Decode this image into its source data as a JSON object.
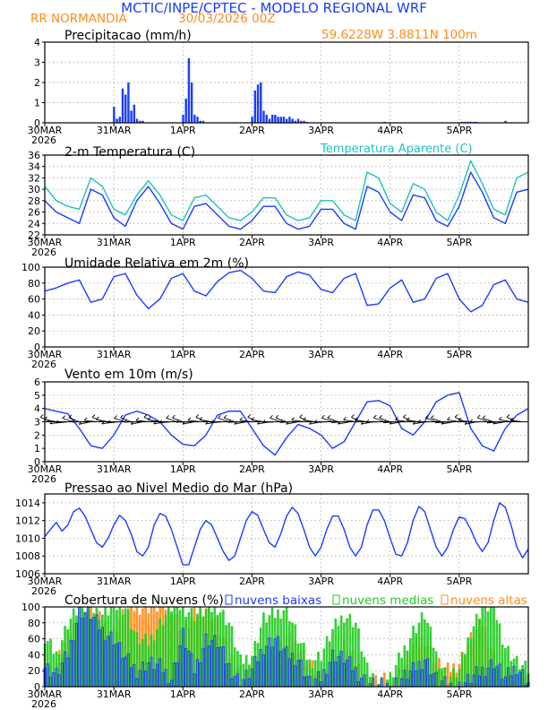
{
  "header": {
    "title": "MCTIC/INPE/CPTEC - MODELO REGIONAL WRF",
    "station": "RR NORMANDIA",
    "run": "30/03/2026 00Z",
    "location": "59.6228W 3.8811N 100m"
  },
  "colors": {
    "blue": "#1a3cff",
    "orange": "#ff8c1a",
    "cyan": "#20c0c0",
    "green": "#22cc22",
    "black": "#000000"
  },
  "chart_data": [
    {
      "type": "bar",
      "title": "Precipitacao (mm/h)",
      "ylim": [
        0,
        4
      ],
      "yticks": [
        "0",
        "1",
        "2",
        "3",
        "4"
      ],
      "xticks": [
        "30MAR",
        "31MAR",
        "1APR",
        "2APR",
        "3APR",
        "4APR",
        "5APR"
      ],
      "xyear": "2026",
      "hours": [
        24,
        25,
        26,
        27,
        28,
        29,
        30,
        31,
        32,
        33,
        34,
        48,
        49,
        50,
        51,
        52,
        53,
        54,
        55,
        72,
        73,
        74,
        75,
        76,
        77,
        78,
        79,
        80,
        81,
        82,
        83,
        84,
        85,
        86,
        87,
        88,
        89,
        90,
        91,
        118,
        145,
        146,
        147,
        148,
        149,
        150,
        160
      ],
      "values": [
        0.8,
        0.2,
        0.3,
        1.7,
        1.4,
        2.0,
        0.6,
        0.9,
        0.2,
        0.1,
        0.1,
        0.4,
        1.2,
        3.2,
        2.0,
        0.4,
        0.3,
        0.1,
        0.1,
        0.3,
        1.6,
        1.9,
        2.0,
        0.6,
        0.4,
        0.2,
        0.4,
        0.4,
        0.3,
        0.3,
        0.3,
        0.2,
        0.3,
        0.2,
        0.1,
        0.2,
        0.1,
        0.1,
        0.05,
        0.05,
        0.05,
        0.05,
        0.05,
        0.05,
        0.05,
        0.05,
        0.1
      ]
    },
    {
      "type": "line",
      "title": "2-m Temperatura (C)",
      "legend": "Temperatura Aparente (C)",
      "ylim": [
        22,
        36
      ],
      "yticks": [
        "22",
        "24",
        "26",
        "28",
        "30",
        "32",
        "34",
        "36"
      ],
      "xticks": [
        "30MAR",
        "31MAR",
        "1APR",
        "2APR",
        "3APR",
        "4APR",
        "5APR"
      ],
      "xyear": "2026",
      "series": [
        {
          "name": "Temperatura Aparente (C)",
          "color": "cyan",
          "x": [
            0,
            4,
            8,
            12,
            16,
            20,
            24,
            28,
            32,
            36,
            40,
            44,
            48,
            52,
            56,
            60,
            64,
            68,
            72,
            76,
            80,
            84,
            88,
            92,
            96,
            100,
            104,
            108,
            112,
            116,
            120,
            124,
            128,
            132,
            136,
            140,
            144,
            148,
            152,
            156,
            160,
            164,
            168
          ],
          "y": [
            30.5,
            28,
            27,
            26.5,
            32,
            30.5,
            26.5,
            25.5,
            29,
            31.5,
            29,
            25.5,
            24.5,
            28.5,
            29,
            27,
            25,
            24.5,
            26,
            28.5,
            28.5,
            25.5,
            24.5,
            25,
            28,
            28,
            25.5,
            24.5,
            33,
            32,
            27.5,
            26,
            31,
            30,
            26,
            24.5,
            29,
            35,
            31,
            26.5,
            25.5,
            32,
            33
          ]
        },
        {
          "name": "2-m Temperatura (C)",
          "color": "blue",
          "x": [
            0,
            4,
            8,
            12,
            16,
            20,
            24,
            28,
            32,
            36,
            40,
            44,
            48,
            52,
            56,
            60,
            64,
            68,
            72,
            76,
            80,
            84,
            88,
            92,
            96,
            100,
            104,
            108,
            112,
            116,
            120,
            124,
            128,
            132,
            136,
            140,
            144,
            148,
            152,
            156,
            160,
            164,
            168
          ],
          "y": [
            28,
            26,
            25,
            24,
            30,
            29,
            25,
            23.5,
            28,
            30.5,
            27.5,
            24,
            23,
            27,
            27.5,
            25.5,
            23.5,
            23,
            24.5,
            27,
            27,
            24,
            23,
            23.5,
            26.5,
            26.5,
            24,
            23,
            30.5,
            29.5,
            26,
            24.5,
            29,
            28.5,
            24.5,
            23.5,
            27,
            33,
            29.5,
            25,
            24,
            29.5,
            30
          ]
        }
      ]
    },
    {
      "type": "line",
      "title": "Umidade Relativa em 2m (%)",
      "ylim": [
        0,
        100
      ],
      "yticks": [
        "0",
        "20",
        "40",
        "60",
        "80",
        "100"
      ],
      "xticks": [
        "30MAR",
        "31MAR",
        "1APR",
        "2APR",
        "3APR",
        "4APR",
        "5APR"
      ],
      "xyear": "2026",
      "series": [
        {
          "name": "Umidade Relativa",
          "color": "blue",
          "x": [
            0,
            4,
            8,
            12,
            16,
            20,
            24,
            28,
            32,
            36,
            40,
            44,
            48,
            52,
            56,
            60,
            64,
            68,
            72,
            76,
            80,
            84,
            88,
            92,
            96,
            100,
            104,
            108,
            112,
            116,
            120,
            124,
            128,
            132,
            136,
            140,
            144,
            148,
            152,
            156,
            160,
            164,
            168
          ],
          "y": [
            70,
            74,
            80,
            84,
            56,
            60,
            88,
            92,
            65,
            48,
            60,
            86,
            92,
            70,
            64,
            82,
            93,
            96,
            86,
            70,
            68,
            88,
            94,
            90,
            72,
            68,
            86,
            92,
            52,
            54,
            74,
            84,
            56,
            60,
            86,
            92,
            60,
            44,
            52,
            78,
            84,
            60,
            56
          ]
        }
      ]
    },
    {
      "type": "line",
      "title": "Vento em 10m (m/s)",
      "ylim": [
        0,
        6
      ],
      "yticks": [
        "0",
        "1",
        "2",
        "3",
        "4",
        "5",
        "6"
      ],
      "xticks": [
        "30MAR",
        "31MAR",
        "1APR",
        "2APR",
        "3APR",
        "4APR",
        "5APR"
      ],
      "xyear": "2026",
      "barb_level": 3,
      "series": [
        {
          "name": "Vento em 10m",
          "color": "blue",
          "x": [
            0,
            4,
            8,
            12,
            16,
            20,
            24,
            28,
            32,
            36,
            40,
            44,
            48,
            52,
            56,
            60,
            64,
            68,
            72,
            76,
            80,
            84,
            88,
            92,
            96,
            100,
            104,
            108,
            112,
            116,
            120,
            124,
            128,
            132,
            136,
            140,
            144,
            148,
            152,
            156,
            160,
            164,
            168
          ],
          "y": [
            4.0,
            3.8,
            3.6,
            2.5,
            1.2,
            1.0,
            2.0,
            3.5,
            3.8,
            3.5,
            3.0,
            2.0,
            1.3,
            1.2,
            2.0,
            3.5,
            3.8,
            3.8,
            2.5,
            1.2,
            0.5,
            1.8,
            2.8,
            2.5,
            2.0,
            1.0,
            1.5,
            3.0,
            4.5,
            4.6,
            4.2,
            2.5,
            2.0,
            3.0,
            4.5,
            5.0,
            5.2,
            2.5,
            1.2,
            0.8,
            2.5,
            3.5,
            4.0
          ]
        }
      ]
    },
    {
      "type": "line",
      "title": "Pressao ao Nivel Medio do Mar (hPa)",
      "ylim": [
        1006,
        1015
      ],
      "yticks": [
        "1006",
        "1008",
        "1010",
        "1012",
        "1014"
      ],
      "xticks": [
        "30MAR",
        "31MAR",
        "1APR",
        "2APR",
        "3APR",
        "4APR",
        "5APR"
      ],
      "xyear": "2026",
      "series": [
        {
          "name": "Pressao",
          "color": "blue",
          "x": [
            0,
            2,
            4,
            6,
            8,
            10,
            12,
            14,
            16,
            18,
            20,
            22,
            24,
            26,
            28,
            30,
            32,
            34,
            36,
            38,
            40,
            42,
            44,
            46,
            48,
            50,
            52,
            54,
            56,
            58,
            60,
            62,
            64,
            66,
            68,
            70,
            72,
            74,
            76,
            78,
            80,
            82,
            84,
            86,
            88,
            90,
            92,
            94,
            96,
            98,
            100,
            102,
            104,
            106,
            108,
            110,
            112,
            114,
            116,
            118,
            120,
            122,
            124,
            126,
            128,
            130,
            132,
            134,
            136,
            138,
            140,
            142,
            144,
            146,
            148,
            150,
            152,
            154,
            156,
            158,
            160,
            162,
            164,
            166,
            168
          ],
          "y": [
            1010.2,
            1011,
            1011.8,
            1010.8,
            1011.5,
            1013,
            1013.4,
            1012.5,
            1011,
            1009.5,
            1009,
            1010,
            1011.5,
            1012.6,
            1012,
            1010.5,
            1008.5,
            1008,
            1009,
            1011.5,
            1012.8,
            1012.5,
            1011,
            1009,
            1007,
            1007,
            1009,
            1011,
            1012,
            1011.5,
            1010,
            1008.5,
            1007.5,
            1008,
            1010,
            1012,
            1013,
            1012.6,
            1011,
            1009.5,
            1009,
            1010.5,
            1012.5,
            1013.5,
            1012.8,
            1011,
            1009,
            1008,
            1009,
            1011,
            1012.5,
            1012.5,
            1011,
            1009,
            1008,
            1009,
            1011.5,
            1013.2,
            1013.2,
            1012,
            1010,
            1008.2,
            1008,
            1009.5,
            1012,
            1013.6,
            1013,
            1011,
            1009,
            1008,
            1009,
            1011,
            1012.4,
            1012.2,
            1011,
            1009.5,
            1008.5,
            1009.5,
            1012,
            1014,
            1013.5,
            1011.5,
            1009,
            1007.8,
            1008.8
          ]
        }
      ]
    },
    {
      "type": "bar",
      "title": "Cobertura de Nuvens (%)",
      "legend": [
        "nuvens baixas",
        "nuvens medias",
        "nuvens altas"
      ],
      "ylim": [
        0,
        100
      ],
      "yticks": [
        "0",
        "20",
        "40",
        "60",
        "80",
        "100"
      ],
      "xticks": [
        "30MAR",
        "31MAR",
        "1APR",
        "2APR",
        "3APR",
        "4APR",
        "5APR"
      ],
      "xyear": "2026",
      "series": [
        {
          "name": "nuvens altas",
          "color": "orange",
          "x": [
            0,
            4,
            8,
            12,
            16,
            20,
            24,
            28,
            32,
            36,
            40,
            44,
            48,
            52,
            56,
            60,
            64,
            68,
            72,
            76,
            80,
            84,
            88,
            92,
            96,
            100,
            104,
            108,
            112,
            116,
            120,
            124,
            128,
            132,
            136,
            140,
            144,
            148,
            152,
            156,
            160,
            164,
            168
          ],
          "y": [
            10,
            30,
            60,
            90,
            98,
            80,
            70,
            95,
            100,
            100,
            100,
            100,
            70,
            90,
            100,
            80,
            40,
            20,
            15,
            30,
            40,
            60,
            50,
            30,
            10,
            20,
            50,
            30,
            10,
            5,
            10,
            20,
            50,
            60,
            30,
            20,
            30,
            60,
            80,
            40,
            20,
            10,
            5
          ]
        },
        {
          "name": "nuvens medias",
          "color": "green",
          "x": [
            0,
            4,
            8,
            12,
            16,
            20,
            24,
            28,
            32,
            36,
            40,
            44,
            48,
            52,
            56,
            60,
            64,
            68,
            72,
            76,
            80,
            84,
            88,
            92,
            96,
            100,
            104,
            108,
            112,
            116,
            120,
            124,
            128,
            132,
            136,
            140,
            144,
            148,
            152,
            156,
            160,
            164,
            168
          ],
          "y": [
            60,
            40,
            80,
            100,
            95,
            90,
            100,
            100,
            60,
            55,
            80,
            100,
            100,
            90,
            95,
            100,
            80,
            30,
            40,
            85,
            90,
            100,
            60,
            30,
            40,
            70,
            90,
            80,
            20,
            5,
            10,
            40,
            70,
            90,
            40,
            10,
            20,
            70,
            100,
            100,
            50,
            30,
            20
          ]
        },
        {
          "name": "nuvens baixas",
          "color": "blue",
          "x": [
            0,
            4,
            8,
            12,
            16,
            20,
            24,
            28,
            32,
            36,
            40,
            44,
            48,
            52,
            56,
            60,
            64,
            68,
            72,
            76,
            80,
            84,
            88,
            92,
            96,
            100,
            104,
            108,
            112,
            116,
            120,
            124,
            128,
            132,
            136,
            140,
            144,
            148,
            152,
            156,
            160,
            164,
            168
          ],
          "y": [
            25,
            15,
            40,
            95,
            90,
            70,
            60,
            35,
            20,
            30,
            25,
            10,
            65,
            20,
            60,
            55,
            25,
            5,
            20,
            50,
            60,
            40,
            35,
            5,
            10,
            40,
            35,
            20,
            5,
            0,
            0,
            10,
            20,
            35,
            10,
            0,
            0,
            10,
            20,
            30,
            10,
            25,
            5
          ]
        }
      ]
    }
  ]
}
